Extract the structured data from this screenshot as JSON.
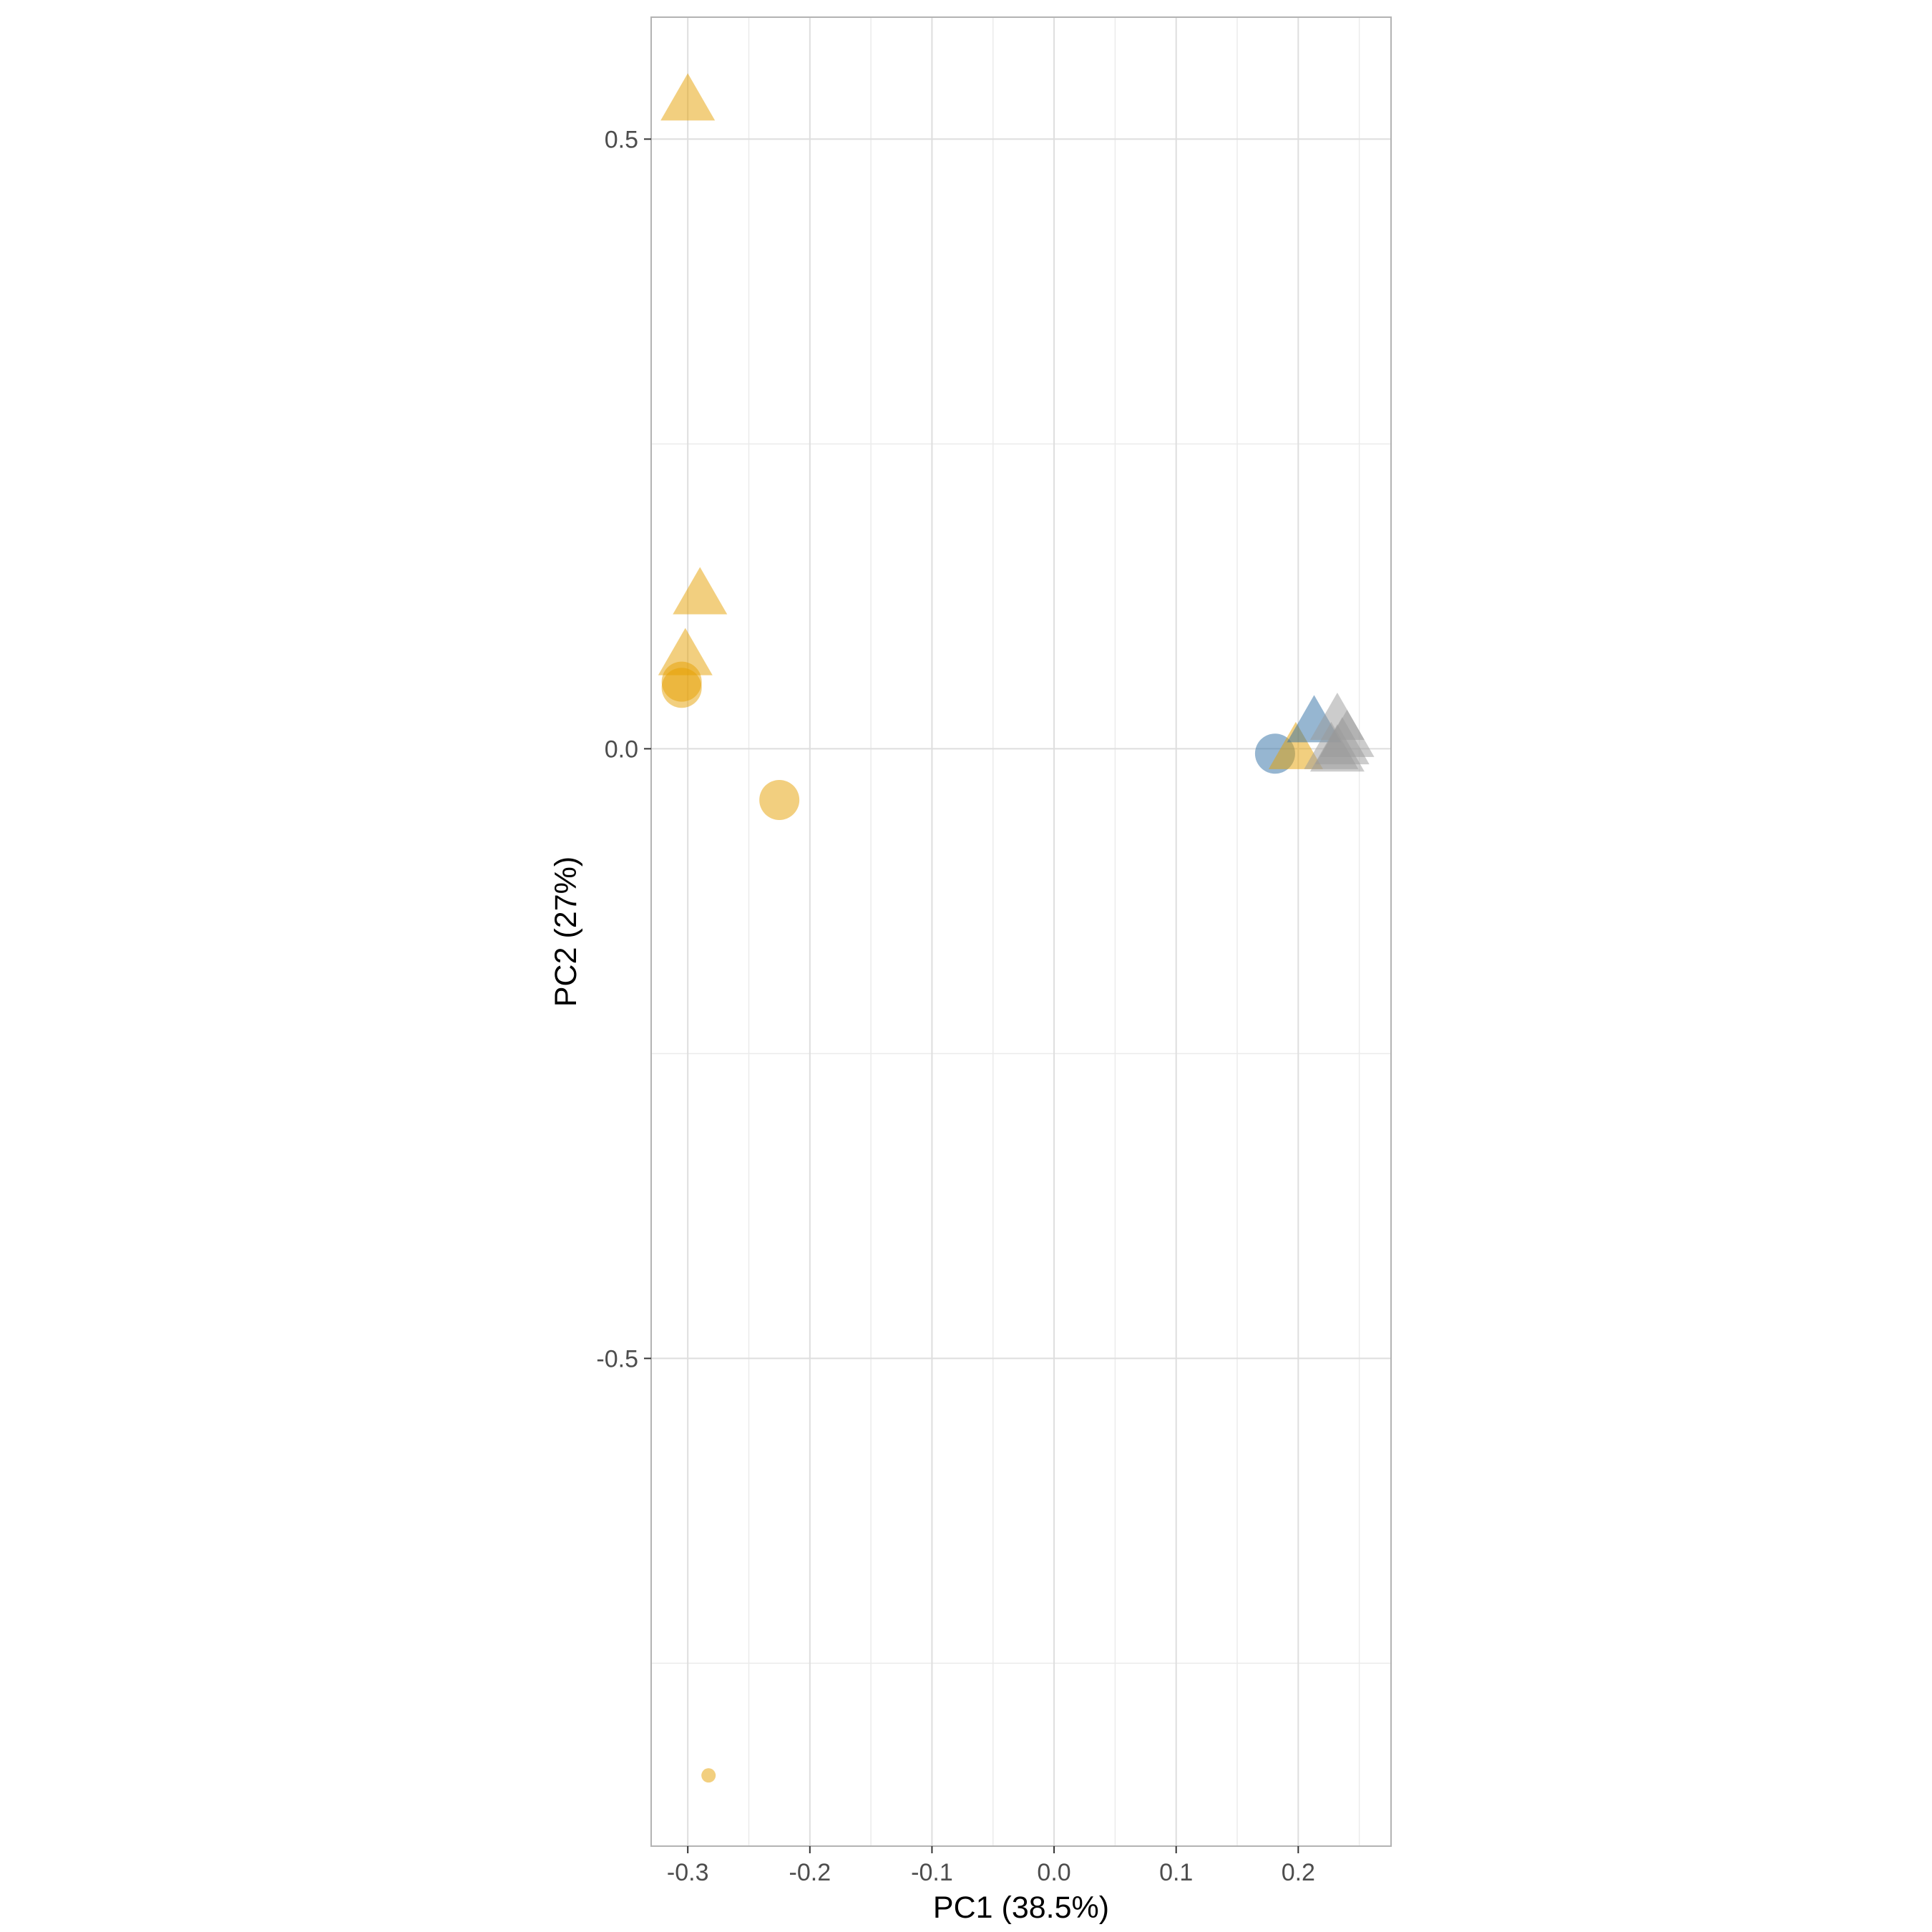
{
  "chart_data": {
    "type": "scatter",
    "xlabel": "PC1 (38.5%)",
    "ylabel": "PC2 (27%)",
    "xlim": [
      -0.33,
      0.276
    ],
    "ylim": [
      -0.9,
      0.6
    ],
    "x_ticks": [
      -0.3,
      -0.2,
      -0.1,
      0.0,
      0.1,
      0.2
    ],
    "x_tick_labels": [
      "-0.3",
      "-0.2",
      "-0.1",
      "0.0",
      "0.1",
      "0.2"
    ],
    "y_ticks": [
      -0.5,
      0.0,
      0.5
    ],
    "y_tick_labels": [
      "-0.5",
      "0.0",
      "0.5"
    ],
    "grid": true,
    "legend": "none",
    "colors": {
      "orange": "#E69F00",
      "blue": "#2E6DA4",
      "gray": "#999999"
    },
    "points": [
      {
        "x": -0.3,
        "y": 0.53,
        "shape": "triangle",
        "color": "orange",
        "size": "large"
      },
      {
        "x": -0.29,
        "y": 0.125,
        "shape": "triangle",
        "color": "orange",
        "size": "large"
      },
      {
        "x": -0.302,
        "y": 0.075,
        "shape": "triangle",
        "color": "orange",
        "size": "large"
      },
      {
        "x": -0.305,
        "y": 0.055,
        "shape": "circle",
        "color": "orange",
        "size": "large"
      },
      {
        "x": -0.305,
        "y": 0.05,
        "shape": "circle",
        "color": "orange",
        "size": "large"
      },
      {
        "x": -0.225,
        "y": -0.042,
        "shape": "circle",
        "color": "orange",
        "size": "large"
      },
      {
        "x": -0.283,
        "y": -0.842,
        "shape": "circle",
        "color": "orange",
        "size": "small"
      },
      {
        "x": 0.181,
        "y": -0.004,
        "shape": "circle",
        "color": "blue",
        "size": "large"
      },
      {
        "x": 0.198,
        "y": -0.002,
        "shape": "triangle",
        "color": "orange",
        "size": "large"
      },
      {
        "x": 0.213,
        "y": 0.02,
        "shape": "triangle",
        "color": "blue",
        "size": "large"
      },
      {
        "x": 0.232,
        "y": 0.022,
        "shape": "triangle",
        "color": "gray",
        "size": "large"
      },
      {
        "x": 0.24,
        "y": 0.008,
        "shape": "triangle",
        "color": "gray",
        "size": "large"
      },
      {
        "x": 0.227,
        "y": -0.002,
        "shape": "triangle",
        "color": "gray",
        "size": "large"
      },
      {
        "x": 0.232,
        "y": -0.004,
        "shape": "triangle",
        "color": "gray",
        "size": "large"
      },
      {
        "x": 0.236,
        "y": 0.002,
        "shape": "triangle",
        "color": "gray",
        "size": "large"
      }
    ]
  }
}
